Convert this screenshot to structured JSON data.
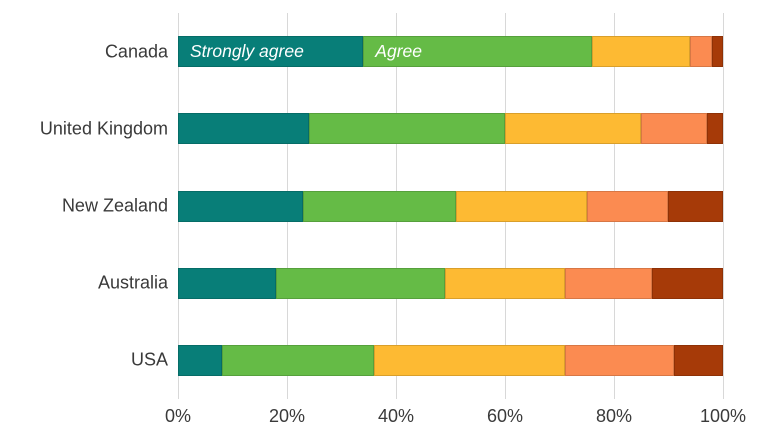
{
  "chart_data": {
    "type": "bar",
    "variant": "horizontal-stacked",
    "title": "",
    "categories": [
      "Canada",
      "United Kingdom",
      "New Zealand",
      "Australia",
      "USA"
    ],
    "series": [
      {
        "name": "Strongly agree",
        "color": "#087E78",
        "values": [
          34,
          24,
          23,
          18,
          8
        ]
      },
      {
        "name": "Agree",
        "color": "#65BB46",
        "values": [
          42,
          36,
          28,
          31,
          28
        ]
      },
      {
        "name": "",
        "color": "#FDBA33",
        "values": [
          18,
          25,
          24,
          22,
          35
        ]
      },
      {
        "name": "",
        "color": "#FB8B51",
        "values": [
          4,
          12,
          15,
          16,
          20
        ]
      },
      {
        "name": "",
        "color": "#A63A08",
        "values": [
          2,
          3,
          10,
          13,
          9
        ]
      }
    ],
    "x_ticks": [
      "0%",
      "20%",
      "40%",
      "60%",
      "80%",
      "100%"
    ],
    "xlim": [
      0,
      100
    ],
    "grid": "vertical-only",
    "legend": "none (series labels shown inline on first bar only)",
    "layout_colors": {
      "gridline": "#D8D8D8",
      "axis_text": "#3A3A3A",
      "inline_label_text": "#FFFFFF",
      "background": "#FFFFFF"
    }
  }
}
